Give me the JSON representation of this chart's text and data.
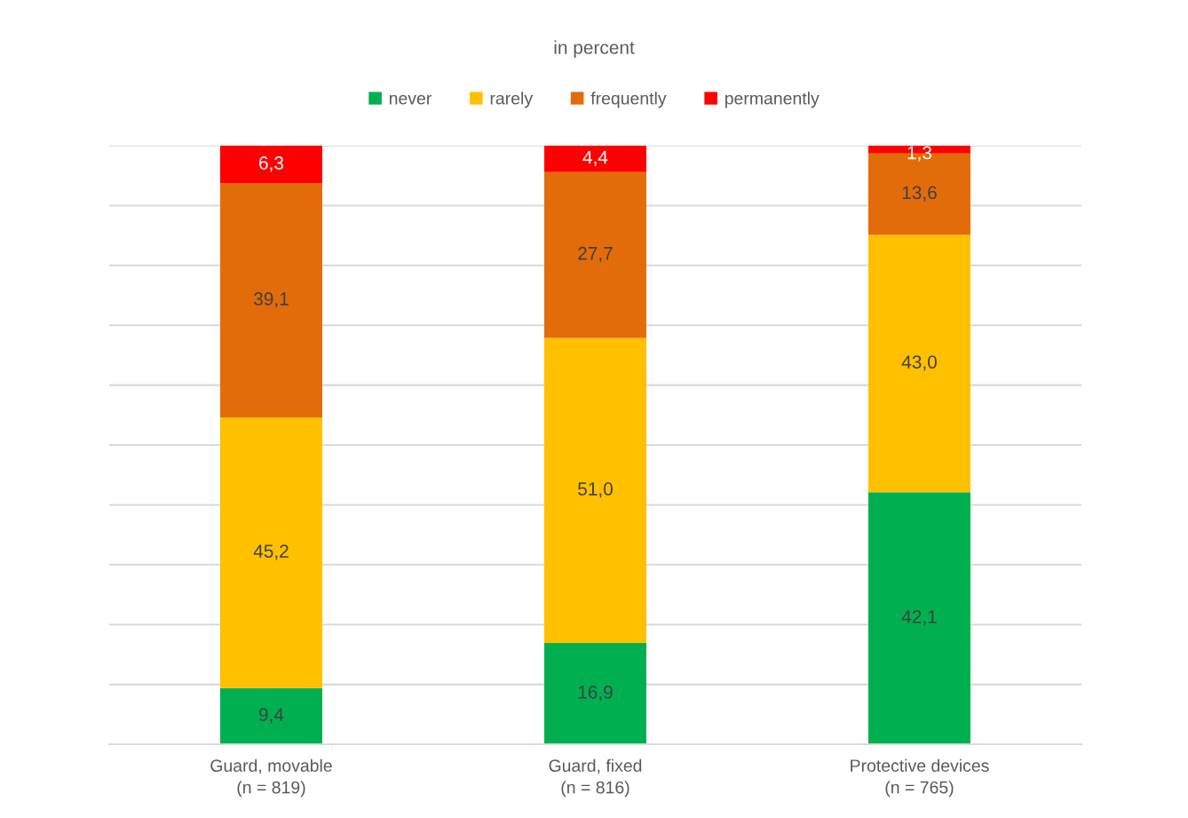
{
  "chart_data": {
    "type": "bar",
    "stacked": true,
    "title": "in percent",
    "categories": [
      "Guard, movable\n(n = 819)",
      "Guard, fixed\n(n = 816)",
      "Protective devices\n(n = 765)"
    ],
    "series": [
      {
        "name": "never",
        "color": "#00b050",
        "values": [
          9.4,
          16.9,
          42.1
        ],
        "value_labels": [
          "9,4",
          "16,9",
          "42,1"
        ]
      },
      {
        "name": "rarely",
        "color": "#ffc000",
        "values": [
          45.2,
          51.0,
          43.0
        ],
        "value_labels": [
          "45,2",
          "51,0",
          "43,0"
        ]
      },
      {
        "name": "frequently",
        "color": "#e36c0a",
        "values": [
          39.1,
          27.7,
          13.6
        ],
        "value_labels": [
          "39,1",
          "27,7",
          "13,6"
        ]
      },
      {
        "name": "permanently",
        "color": "#ff0000",
        "values": [
          6.3,
          4.4,
          1.3
        ],
        "value_labels": [
          "6,3",
          "4,4",
          "1,3"
        ]
      }
    ],
    "ylim": [
      0,
      100
    ],
    "yticks": [
      {
        "value": 0,
        "label": null
      },
      {
        "value": 10,
        "label": null
      },
      {
        "value": 20,
        "label": null
      },
      {
        "value": 30,
        "label": null
      },
      {
        "value": 40,
        "label": null
      },
      {
        "value": 50,
        "label": null
      },
      {
        "value": 60,
        "label": null
      },
      {
        "value": 70,
        "label": null
      },
      {
        "value": 80,
        "label": null
      },
      {
        "value": 90,
        "label": null
      },
      {
        "value": 100,
        "label": null
      }
    ],
    "grid": "y",
    "legend": "top",
    "tick_labels": "x"
  }
}
